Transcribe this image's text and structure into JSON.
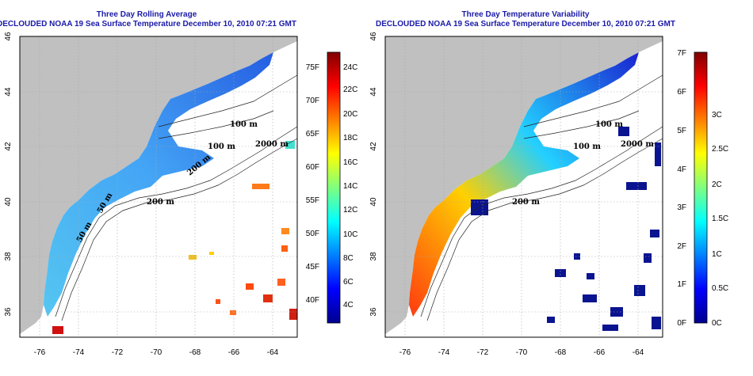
{
  "left_map": {
    "title_line1": "Three Day Rolling Average",
    "title_line2": "DECLOUDED NOAA 19 Sea Surface Temperature December 10, 2010 07:21 GMT",
    "x_ticks": [
      "-76",
      "-74",
      "-72",
      "-70",
      "-68",
      "-66",
      "-64"
    ],
    "y_ticks": [
      "36",
      "38",
      "40",
      "42",
      "44",
      "46"
    ],
    "depth_labels": [
      "100 m",
      "2000 m",
      "100 m",
      "200 m",
      "200 m",
      "50 m",
      "50 m"
    ],
    "colorbar": {
      "fahrenheit": [
        "75F",
        "70F",
        "65F",
        "60F",
        "55F",
        "50F",
        "45F",
        "40F"
      ],
      "celsius": [
        "24C",
        "22C",
        "20C",
        "18C",
        "16C",
        "14C",
        "12C",
        "10C",
        "8C",
        "6C",
        "4C"
      ]
    }
  },
  "right_map": {
    "title_line1": "Three Day Temperature Variability",
    "title_line2": "DECLOUDED NOAA 19 Sea Surface Temperature December 10, 2010 07:21 GMT",
    "x_ticks": [
      "-76",
      "-74",
      "-72",
      "-70",
      "-68",
      "-66",
      "-64"
    ],
    "y_ticks": [
      "36",
      "38",
      "40",
      "42",
      "44",
      "46"
    ],
    "depth_labels": [
      "100 m",
      "2000 m",
      "100 m",
      "200 m"
    ],
    "colorbar": {
      "fahrenheit": [
        "7F",
        "6F",
        "5F",
        "4F",
        "3F",
        "2F",
        "1F",
        "0F"
      ],
      "celsius": [
        "3C",
        "2.5C",
        "2C",
        "1.5C",
        "1C",
        "0.5C",
        "0C"
      ]
    }
  },
  "colors": {
    "land": "#c0c0c0",
    "title": "#1a1aa8",
    "grid": "#b0b0b0"
  }
}
